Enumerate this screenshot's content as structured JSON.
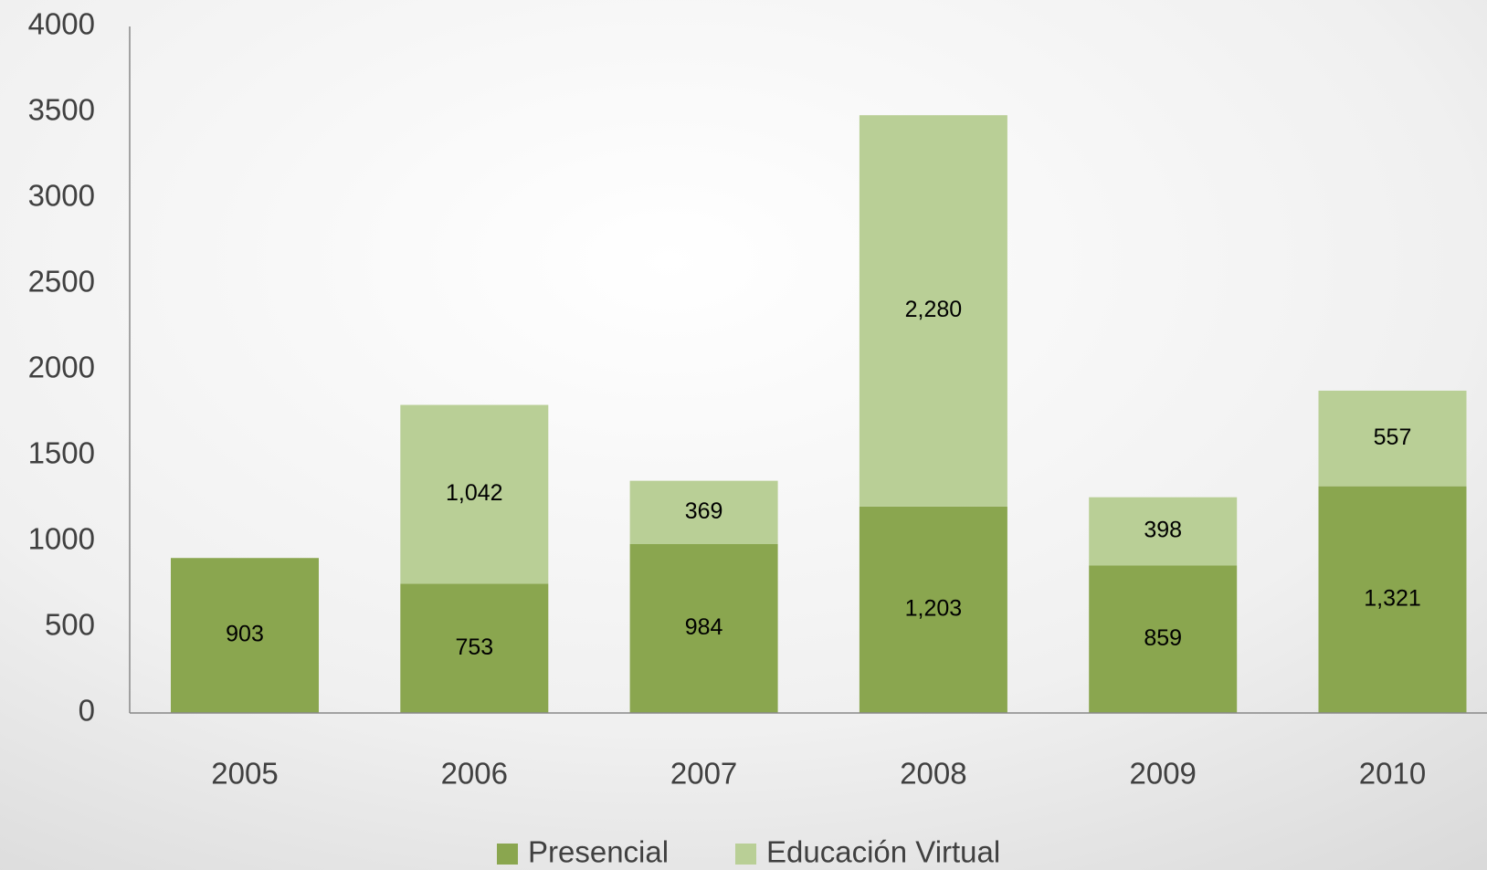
{
  "chart_data": {
    "type": "stacked-bar",
    "categories": [
      "2005",
      "2006",
      "2007",
      "2008",
      "2009",
      "2010"
    ],
    "series": [
      {
        "name": "Presencial",
        "color": "#8aa64f",
        "values": [
          903,
          753,
          984,
          1203,
          859,
          1321
        ],
        "value_labels": [
          "903",
          "753",
          "984",
          "1,203",
          "859",
          "1,321"
        ]
      },
      {
        "name": "Educación Virtual",
        "color": "#b9cf96",
        "values": [
          null,
          1042,
          369,
          2280,
          398,
          557
        ],
        "value_labels": [
          null,
          "1,042",
          "369",
          "2,280",
          "398",
          "557"
        ]
      }
    ],
    "ylim": [
      0,
      4000
    ],
    "yticks": [
      0,
      500,
      1000,
      1500,
      2000,
      2500,
      3000,
      3500,
      4000
    ],
    "legend": "bottom"
  }
}
